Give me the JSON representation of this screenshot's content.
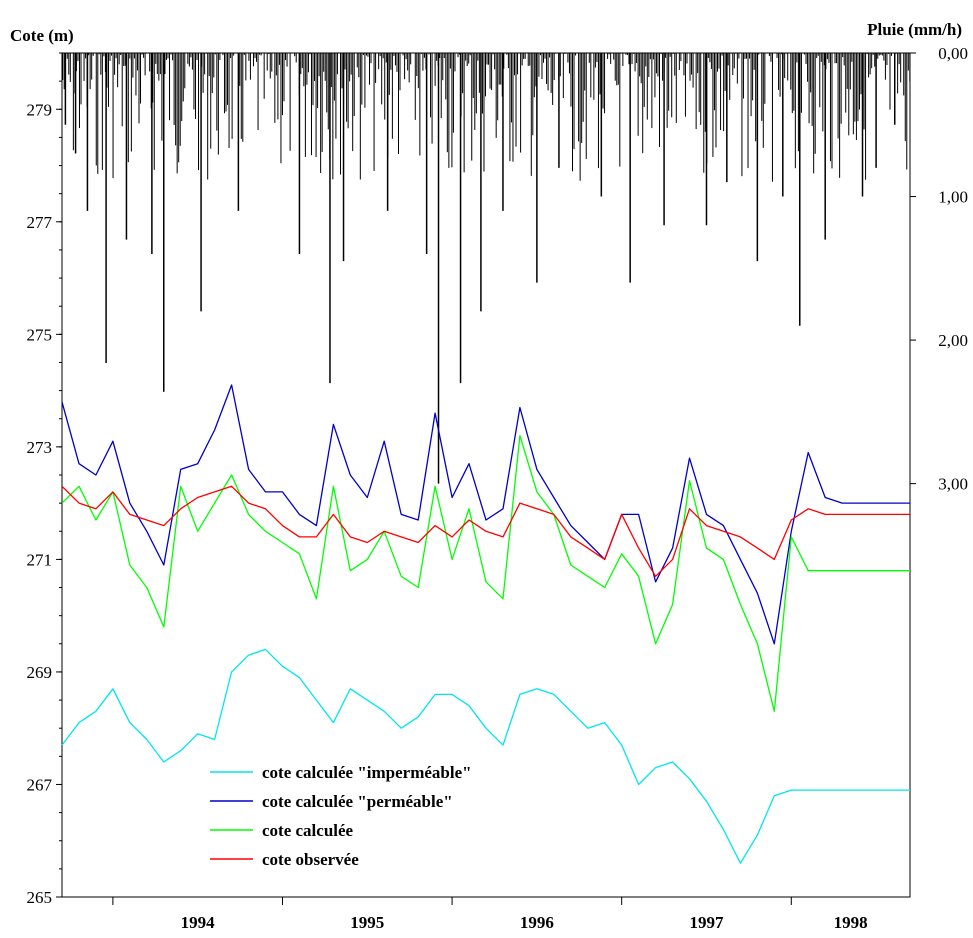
{
  "chart_data": {
    "type": "line",
    "y_left_label": "Cote (m)",
    "y_right_label": "Pluie (mm/h)",
    "x_tick_labels": [
      "1994",
      "1995",
      "1996",
      "1997",
      "1998"
    ],
    "y_left_ticks": [
      265,
      267,
      269,
      271,
      273,
      275,
      277,
      279
    ],
    "y_left_tick_labels": [
      "265",
      "267",
      "269",
      "271",
      "273",
      "275",
      "277",
      "279"
    ],
    "y_left_range": [
      265,
      280
    ],
    "y_right_ticks": [
      0,
      1,
      2,
      3
    ],
    "y_right_tick_labels": [
      "0,00",
      "1,00",
      "2,00",
      "3,00"
    ],
    "y_right_range_inverted": [
      0,
      5.88
    ],
    "x_range_years": [
      1993.7,
      1998.7
    ],
    "legend_position": "bottom-left",
    "colors": {
      "impermeable": "#00e5ee",
      "permeable": "#0000c8",
      "calculee": "#00ff00",
      "observee": "#ff0000",
      "rain": "#000000"
    },
    "series": [
      {
        "name": "cote calculée \"imperméable\"",
        "key": "impermeable",
        "x": [
          1993.7,
          1993.8,
          1993.9,
          1994.0,
          1994.1,
          1994.2,
          1994.3,
          1994.4,
          1994.5,
          1994.6,
          1994.7,
          1994.8,
          1994.9,
          1995.0,
          1995.1,
          1995.2,
          1995.3,
          1995.4,
          1995.5,
          1995.6,
          1995.7,
          1995.8,
          1995.9,
          1996.0,
          1996.1,
          1996.2,
          1996.3,
          1996.4,
          1996.5,
          1996.6,
          1996.7,
          1996.8,
          1996.9,
          1997.0,
          1997.1,
          1997.2,
          1997.3,
          1997.4,
          1997.5,
          1997.6,
          1997.7,
          1997.8,
          1997.9,
          1998.0,
          1998.1,
          1998.2,
          1998.3,
          1998.4,
          1998.5,
          1998.6,
          1998.7
        ],
        "y": [
          267.7,
          268.1,
          268.3,
          268.7,
          268.1,
          267.8,
          267.4,
          267.6,
          267.9,
          267.8,
          269.0,
          269.3,
          269.4,
          269.1,
          268.9,
          268.5,
          268.1,
          268.7,
          268.5,
          268.3,
          268.0,
          268.2,
          268.6,
          268.6,
          268.4,
          268.0,
          267.7,
          268.6,
          268.7,
          268.6,
          268.3,
          268.0,
          268.1,
          267.7,
          267.0,
          267.3,
          267.4,
          267.1,
          266.7,
          266.2,
          265.6,
          266.1,
          266.8,
          266.9,
          266.9,
          266.9,
          266.9,
          266.9,
          266.9,
          266.9,
          266.9
        ]
      },
      {
        "name": "cote calculée \"perméable\"",
        "key": "permeable",
        "x": [
          1993.7,
          1993.8,
          1993.9,
          1994.0,
          1994.1,
          1994.2,
          1994.3,
          1994.4,
          1994.5,
          1994.6,
          1994.7,
          1994.8,
          1994.9,
          1995.0,
          1995.1,
          1995.2,
          1995.3,
          1995.4,
          1995.5,
          1995.6,
          1995.7,
          1995.8,
          1995.9,
          1996.0,
          1996.1,
          1996.2,
          1996.3,
          1996.4,
          1996.5,
          1996.6,
          1996.7,
          1996.8,
          1996.9,
          1997.0,
          1997.1,
          1997.2,
          1997.3,
          1997.4,
          1997.5,
          1997.6,
          1997.7,
          1997.8,
          1997.9,
          1998.0,
          1998.1,
          1998.2,
          1998.3,
          1998.4,
          1998.5,
          1998.6,
          1998.7
        ],
        "y": [
          273.8,
          272.7,
          272.5,
          273.1,
          272.0,
          271.5,
          270.9,
          272.6,
          272.7,
          273.3,
          274.1,
          272.6,
          272.2,
          272.2,
          271.8,
          271.6,
          273.4,
          272.5,
          272.1,
          273.1,
          271.8,
          271.7,
          273.6,
          272.1,
          272.7,
          271.7,
          271.9,
          273.7,
          272.6,
          272.1,
          271.6,
          271.3,
          271.0,
          271.8,
          271.8,
          270.6,
          271.2,
          272.8,
          271.8,
          271.6,
          271.0,
          270.4,
          269.5,
          271.5,
          272.9,
          272.1,
          272.0,
          272.0,
          272.0,
          272.0,
          272.0
        ]
      },
      {
        "name": "cote calculée",
        "key": "calculee",
        "x": [
          1993.7,
          1993.8,
          1993.9,
          1994.0,
          1994.1,
          1994.2,
          1994.3,
          1994.4,
          1994.5,
          1994.6,
          1994.7,
          1994.8,
          1994.9,
          1995.0,
          1995.1,
          1995.2,
          1995.3,
          1995.4,
          1995.5,
          1995.6,
          1995.7,
          1995.8,
          1995.9,
          1996.0,
          1996.1,
          1996.2,
          1996.3,
          1996.4,
          1996.5,
          1996.6,
          1996.7,
          1996.8,
          1996.9,
          1997.0,
          1997.1,
          1997.2,
          1997.3,
          1997.4,
          1997.5,
          1997.6,
          1997.7,
          1997.8,
          1997.9,
          1998.0,
          1998.1,
          1998.2,
          1998.3,
          1998.4,
          1998.5,
          1998.6,
          1998.7
        ],
        "y": [
          272.0,
          272.3,
          271.7,
          272.2,
          270.9,
          270.5,
          269.8,
          272.3,
          271.5,
          272.0,
          272.5,
          271.8,
          271.5,
          271.3,
          271.1,
          270.3,
          272.3,
          270.8,
          271.0,
          271.5,
          270.7,
          270.5,
          272.3,
          271.0,
          271.9,
          270.6,
          270.3,
          273.2,
          272.2,
          271.8,
          270.9,
          270.7,
          270.5,
          271.1,
          270.7,
          269.5,
          270.2,
          272.4,
          271.2,
          271.0,
          270.2,
          269.5,
          268.3,
          271.4,
          270.8,
          270.8,
          270.8,
          270.8,
          270.8,
          270.8,
          270.8
        ]
      },
      {
        "name": "cote observée",
        "key": "observee",
        "x": [
          1993.7,
          1993.8,
          1993.9,
          1994.0,
          1994.1,
          1994.2,
          1994.3,
          1994.4,
          1994.5,
          1994.6,
          1994.7,
          1994.8,
          1994.9,
          1995.0,
          1995.1,
          1995.2,
          1995.3,
          1995.4,
          1995.5,
          1995.6,
          1995.7,
          1995.8,
          1995.9,
          1996.0,
          1996.1,
          1996.2,
          1996.3,
          1996.4,
          1996.5,
          1996.6,
          1996.7,
          1996.8,
          1996.9,
          1997.0,
          1997.1,
          1997.2,
          1997.3,
          1997.4,
          1997.5,
          1997.6,
          1997.7,
          1997.8,
          1997.9,
          1998.0,
          1998.1,
          1998.2,
          1998.3,
          1998.4,
          1998.5,
          1998.6,
          1998.7
        ],
        "y": [
          272.3,
          272.0,
          271.9,
          272.2,
          271.8,
          271.7,
          271.6,
          271.9,
          272.1,
          272.2,
          272.3,
          272.0,
          271.9,
          271.6,
          271.4,
          271.4,
          271.8,
          271.4,
          271.3,
          271.5,
          271.4,
          271.3,
          271.6,
          271.4,
          271.7,
          271.5,
          271.4,
          272.0,
          271.9,
          271.8,
          271.4,
          271.2,
          271.0,
          271.8,
          271.2,
          270.7,
          271.0,
          271.9,
          271.6,
          271.5,
          271.4,
          271.2,
          271.0,
          271.7,
          271.9,
          271.8,
          271.8,
          271.8,
          271.8,
          271.8,
          271.8
        ]
      }
    ],
    "rain": {
      "name": "Pluie",
      "x": [
        1993.72,
        1993.78,
        1993.85,
        1993.96,
        1994.08,
        1994.23,
        1994.3,
        1994.52,
        1994.74,
        1995.1,
        1995.28,
        1995.36,
        1995.62,
        1995.85,
        1995.92,
        1996.05,
        1996.17,
        1996.3,
        1996.5,
        1996.63,
        1996.88,
        1997.05,
        1997.25,
        1997.5,
        1997.62,
        1997.8,
        1997.95,
        1998.05,
        1998.2,
        1998.42,
        1998.5,
        1998.61
      ],
      "y": [
        0.5,
        0.7,
        1.1,
        2.16,
        1.3,
        1.4,
        2.36,
        1.8,
        1.1,
        1.4,
        2.3,
        1.45,
        1.1,
        1.4,
        3.0,
        2.3,
        1.8,
        1.1,
        1.6,
        0.8,
        1.0,
        1.6,
        1.2,
        1.2,
        0.9,
        1.45,
        1.0,
        1.9,
        1.3,
        1.0,
        0.8,
        0.5
      ]
    }
  },
  "legend": {
    "items": [
      {
        "label": "cote calculée \"imperméable\"",
        "key": "impermeable"
      },
      {
        "label": "cote calculée \"perméable\"",
        "key": "permeable"
      },
      {
        "label": "cote calculée",
        "key": "calculee"
      },
      {
        "label": "cote observée",
        "key": "observee"
      }
    ]
  }
}
